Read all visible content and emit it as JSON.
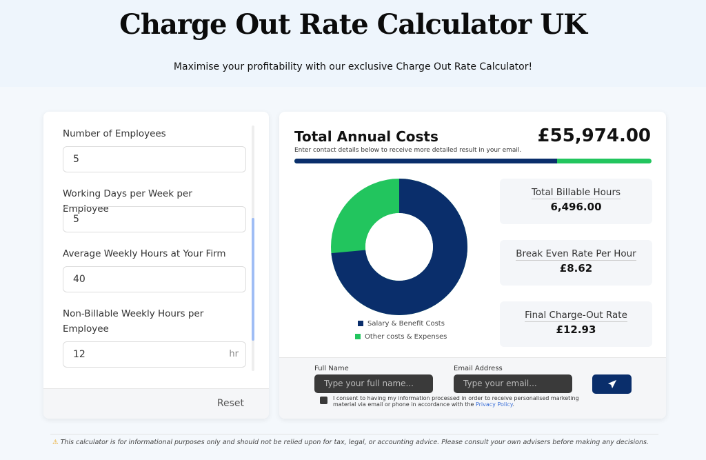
{
  "header": {
    "title": "Charge Out Rate Calculator UK",
    "subtitle": "Maximise your profitability with our exclusive Charge Out Rate Calculator!"
  },
  "form": {
    "fields": [
      {
        "label": "Number of Employees",
        "value": "5"
      },
      {
        "label": "Working Days per Week per Employee",
        "value": "5"
      },
      {
        "label": "Average Weekly Hours at Your Firm",
        "value": "40"
      },
      {
        "label": "Non-Billable Weekly Hours per Employee",
        "value": "12",
        "unit": "hr"
      }
    ],
    "reset_label": "Reset"
  },
  "results": {
    "title": "Total Annual Costs",
    "subtitle": "Enter contact details below to receive more detailed result in your email.",
    "total": "£55,974.00",
    "salary_share_percent": 73.5,
    "legend": [
      {
        "label": "Salary & Benefit Costs",
        "color": "#0a2e6b"
      },
      {
        "label": "Other costs & Expenses",
        "color": "#22c55e"
      }
    ],
    "stats": [
      {
        "label": "Total Billable Hours",
        "value": "6,496.00"
      },
      {
        "label": "Break Even Rate Per Hour",
        "value": "£8.62"
      },
      {
        "label": "Final Charge-Out Rate",
        "value": "£12.93"
      }
    ]
  },
  "contact": {
    "name_label": "Full Name",
    "name_placeholder": "Type your full name...",
    "email_label": "Email Address",
    "email_placeholder": "Type your email...",
    "consent": "I consent to having my information processed in order to receive personalised marketing material via email or phone in accordance with the",
    "privacy_link": "Privacy Policy",
    "period": "."
  },
  "disclaimer": "This calculator is for informational purposes only and should not be relied upon for tax, legal, or accounting advice. Please consult your own advisers before making any decisions."
}
